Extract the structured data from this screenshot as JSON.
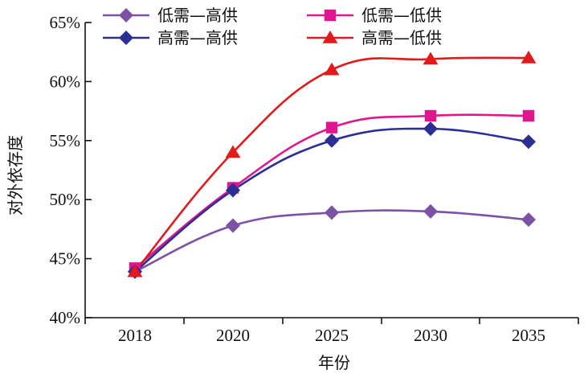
{
  "chart_data": {
    "type": "line",
    "categories": [
      "2018",
      "2020",
      "2025",
      "2030",
      "2035"
    ],
    "xlabel": "年份",
    "ylabel": "对外依存度",
    "ylim": [
      40,
      65
    ],
    "y_ticks": [
      "40%",
      "45%",
      "50%",
      "55%",
      "60%",
      "65%"
    ],
    "y_tick_values": [
      40,
      45,
      50,
      55,
      60,
      65
    ],
    "grid": false,
    "legend": "top-left",
    "series": [
      {
        "name": "低需—高供",
        "values": [
          43.9,
          47.8,
          48.9,
          49.0,
          48.3
        ],
        "color": "#7b52a6",
        "marker": "diamond"
      },
      {
        "name": "低需—低供",
        "values": [
          44.2,
          51.0,
          56.1,
          57.1,
          57.1
        ],
        "color": "#e0168f",
        "marker": "square"
      },
      {
        "name": "高需—高供",
        "values": [
          43.9,
          50.8,
          55.0,
          56.0,
          54.9
        ],
        "color": "#2b2f94",
        "marker": "diamond"
      },
      {
        "name": "高需—低供",
        "values": [
          43.9,
          54.0,
          61.0,
          61.9,
          62.0
        ],
        "color": "#e31a1c",
        "marker": "triangle"
      }
    ]
  }
}
